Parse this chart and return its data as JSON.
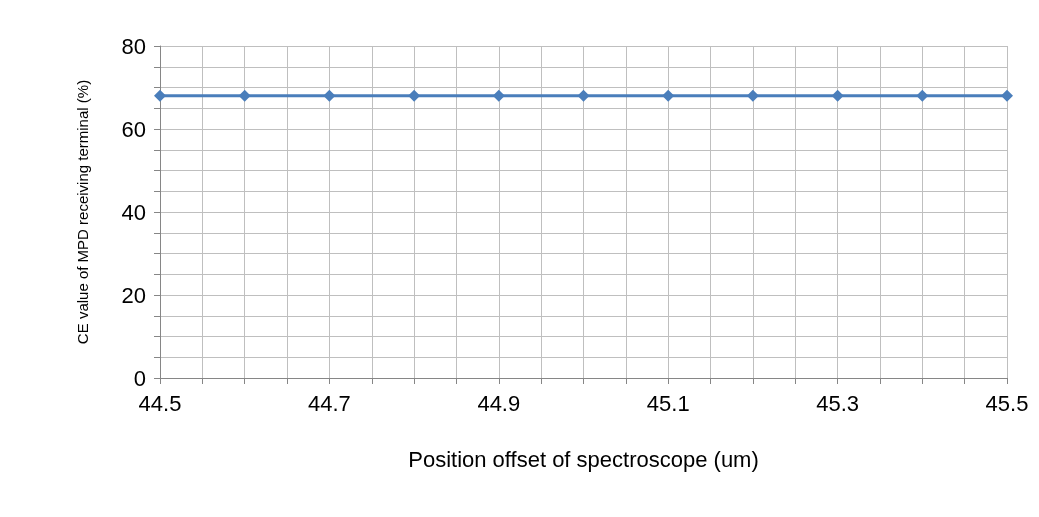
{
  "chart_data": {
    "type": "line",
    "xlabel": "Position offset of spectroscope (um)",
    "ylabel": "CE value of MPD receiving terminal (%)",
    "x": [
      44.5,
      44.6,
      44.7,
      44.8,
      44.9,
      45.0,
      45.1,
      45.2,
      45.3,
      45.4,
      45.5
    ],
    "series": [
      {
        "color": "#4a7ebb",
        "values": [
          68,
          68,
          68,
          68,
          68,
          68,
          68,
          68,
          68,
          68,
          68
        ]
      }
    ],
    "xlim": [
      44.5,
      45.5
    ],
    "xticks": [
      44.5,
      {
        "value": 44.55,
        "label": null
      },
      {
        "value": 44.6,
        "label": null
      },
      {
        "value": 44.65,
        "label": null
      },
      44.7,
      {
        "value": 44.75,
        "label": null
      },
      {
        "value": 44.8,
        "label": null
      },
      {
        "value": 44.85,
        "label": null
      },
      44.9,
      {
        "value": 44.95,
        "label": null
      },
      {
        "value": 45.0,
        "label": null
      },
      {
        "value": 45.05,
        "label": null
      },
      45.1,
      {
        "value": 45.15,
        "label": null
      },
      {
        "value": 45.2,
        "label": null
      },
      {
        "value": 45.25,
        "label": null
      },
      45.3,
      {
        "value": 45.35,
        "label": null
      },
      {
        "value": 45.4,
        "label": null
      },
      {
        "value": 45.45,
        "label": null
      },
      45.5
    ],
    "ylim": [
      0,
      80
    ],
    "yticks": [
      0,
      {
        "value": 5,
        "label": null
      },
      {
        "value": 10,
        "label": null
      },
      {
        "value": 15,
        "label": null
      },
      20,
      {
        "value": 25,
        "label": null
      },
      {
        "value": 30,
        "label": null
      },
      {
        "value": 35,
        "label": null
      },
      40,
      {
        "value": 45,
        "label": null
      },
      {
        "value": 50,
        "label": null
      },
      {
        "value": 55,
        "label": null
      },
      60,
      {
        "value": 65,
        "label": null
      },
      {
        "value": 70,
        "label": null
      },
      {
        "value": 75,
        "label": null
      },
      80
    ],
    "grid": true,
    "marker": "diamond",
    "line_style": "solid"
  }
}
